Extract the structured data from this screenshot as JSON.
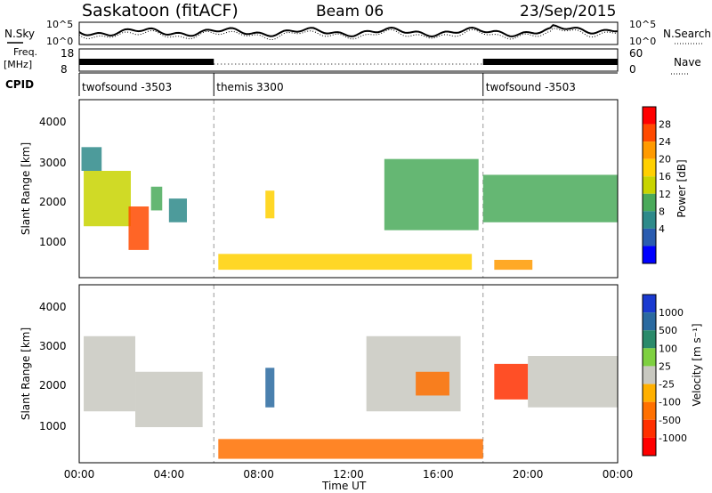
{
  "header": {
    "station": "Saskatoon (fitACF)",
    "beam": "Beam 06",
    "date": "23/Sep/2015"
  },
  "noise_panel": {
    "left_label": "N.Sky",
    "right_label": "N.Search",
    "left_ticks": [
      "10^5",
      "10^0"
    ],
    "right_ticks": [
      "10^5",
      "10^0"
    ]
  },
  "freq_panel": {
    "left_label_line1": "Freq.",
    "left_label_line2": "[MHz]",
    "right_label": "Nave",
    "left_ticks": [
      "18",
      "8"
    ],
    "right_ticks": [
      "60",
      "0"
    ]
  },
  "cpid_panel": {
    "label": "CPID",
    "segments": [
      {
        "name": "twofsound -3503",
        "start": 0,
        "end": 6
      },
      {
        "name": "themis 3300",
        "start": 6,
        "end": 18
      },
      {
        "name": "twofsound -3503",
        "start": 18,
        "end": 24
      }
    ]
  },
  "x_axis": {
    "label": "Time UT",
    "ticks": [
      "00:00",
      "04:00",
      "08:00",
      "12:00",
      "16:00",
      "20:00",
      "00:00"
    ]
  },
  "power_panel": {
    "ylabel": "Slant Range [km]",
    "yticks": [
      "4000",
      "3000",
      "2000",
      "1000"
    ],
    "cbar_label": "Power [dB]",
    "cbar_ticks": [
      "28",
      "24",
      "20",
      "16",
      "12",
      "8",
      "4"
    ],
    "cbar_colors": [
      "#ff0000",
      "#ff4a00",
      "#ff9a00",
      "#ffd000",
      "#c8d400",
      "#4aaa5a",
      "#2e8a8a",
      "#2a5cb0",
      "#0000ff"
    ]
  },
  "velocity_panel": {
    "ylabel": "Slant Range [km]",
    "yticks": [
      "4000",
      "3000",
      "2000",
      "1000"
    ],
    "cbar_label": "Velocity [m s⁻¹]",
    "cbar_ticks": [
      "1000",
      "500",
      "100",
      "25",
      "-25",
      "-100",
      "-500",
      "-1000"
    ],
    "cbar_colors": [
      "#1a3ad0",
      "#2a6aa0",
      "#2a8a6a",
      "#7ed040",
      "#c8c8c0",
      "#ffb000",
      "#ff7000",
      "#ff3000",
      "#ff0000"
    ]
  },
  "chart_data": [
    {
      "type": "heatmap",
      "title": "Power",
      "xlabel": "Time UT",
      "ylabel": "Slant Range [km]",
      "xlim": [
        0,
        24
      ],
      "ylim": [
        0,
        4500
      ],
      "regions": [
        {
          "t0": 0.2,
          "t1": 2.3,
          "r0": 1300,
          "r1": 2700,
          "level": 16
        },
        {
          "t0": 0.1,
          "t1": 1.0,
          "r0": 2700,
          "r1": 3300,
          "level": 10
        },
        {
          "t0": 2.2,
          "t1": 3.1,
          "r0": 700,
          "r1": 1800,
          "level": 26
        },
        {
          "t0": 3.2,
          "t1": 3.7,
          "r0": 1700,
          "r1": 2300,
          "level": 14
        },
        {
          "t0": 4.0,
          "t1": 4.8,
          "r0": 1400,
          "r1": 2000,
          "level": 10
        },
        {
          "t0": 8.3,
          "t1": 8.7,
          "r0": 1500,
          "r1": 2200,
          "level": 20
        },
        {
          "t0": 6.2,
          "t1": 17.5,
          "r0": 200,
          "r1": 600,
          "level": 20
        },
        {
          "t0": 13.6,
          "t1": 17.8,
          "r0": 1200,
          "r1": 3000,
          "level": 12
        },
        {
          "t0": 18.0,
          "t1": 24.0,
          "r0": 1400,
          "r1": 2600,
          "level": 12
        },
        {
          "t0": 18.5,
          "t1": 20.2,
          "r0": 200,
          "r1": 450,
          "level": 24
        }
      ]
    },
    {
      "type": "heatmap",
      "title": "Velocity",
      "xlabel": "Time UT",
      "ylabel": "Slant Range [km]",
      "xlim": [
        0,
        24
      ],
      "ylim": [
        0,
        4500
      ],
      "regions": [
        {
          "t0": 0.2,
          "t1": 2.5,
          "r0": 1300,
          "r1": 3200,
          "level": 0
        },
        {
          "t0": 2.5,
          "t1": 5.5,
          "r0": 900,
          "r1": 2300,
          "level": -10
        },
        {
          "t0": 8.3,
          "t1": 8.7,
          "r0": 1400,
          "r1": 2400,
          "level": 600
        },
        {
          "t0": 6.2,
          "t1": 18.0,
          "r0": 100,
          "r1": 600,
          "level": -80
        },
        {
          "t0": 12.8,
          "t1": 17.0,
          "r0": 1300,
          "r1": 3200,
          "level": 0
        },
        {
          "t0": 15.0,
          "t1": 16.5,
          "r0": 1700,
          "r1": 2300,
          "level": -200
        },
        {
          "t0": 18.5,
          "t1": 20.0,
          "r0": 1600,
          "r1": 2500,
          "level": -400
        },
        {
          "t0": 20.0,
          "t1": 24.0,
          "r0": 1400,
          "r1": 2700,
          "level": 0
        }
      ]
    }
  ]
}
